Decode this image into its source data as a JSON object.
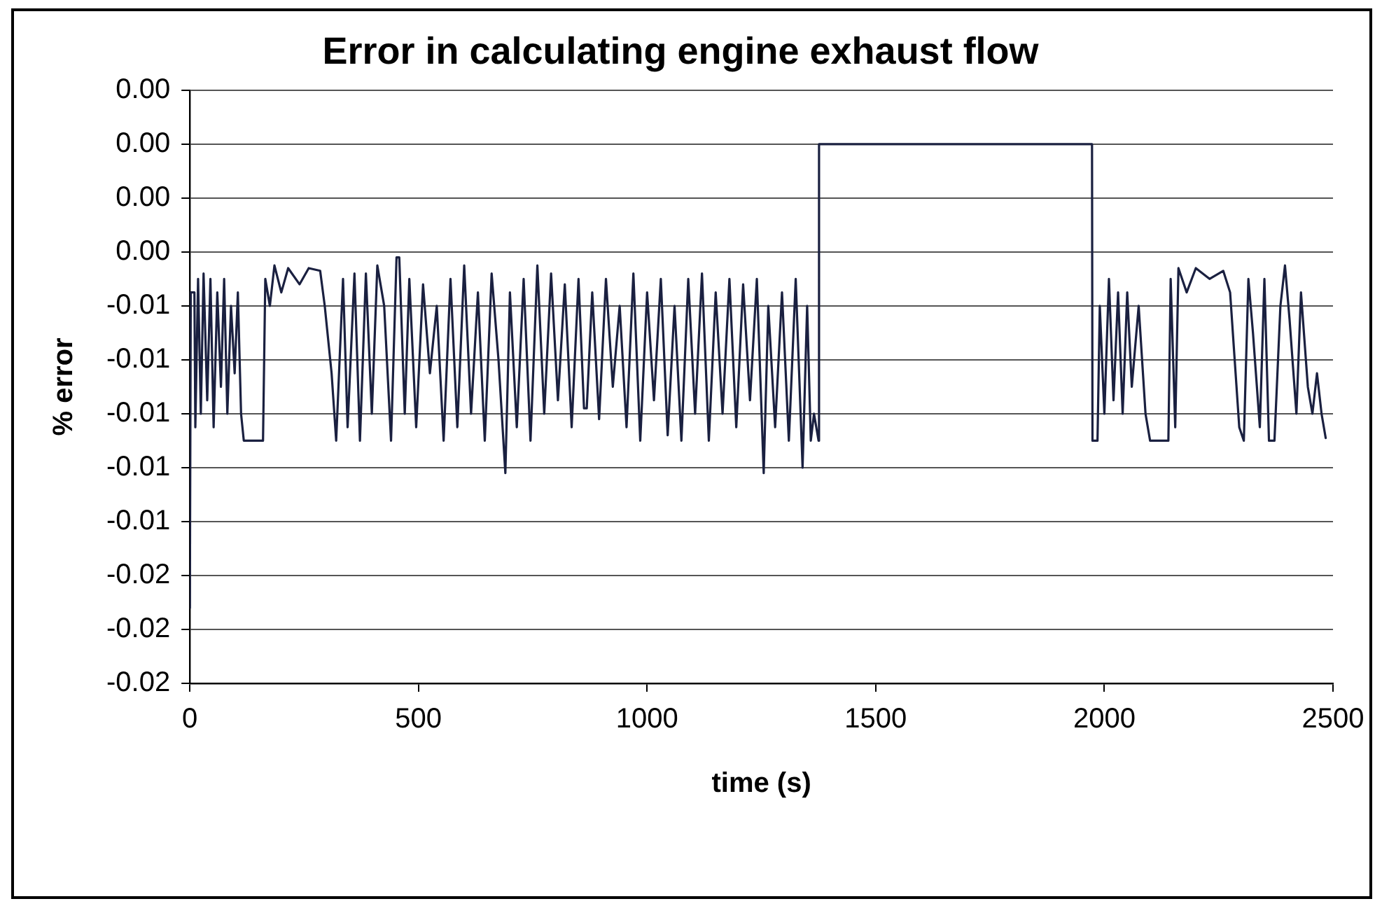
{
  "chart_data": {
    "type": "line",
    "title": "Error in calculating engine exhaust flow",
    "xlabel": "time (s)",
    "ylabel": "% error",
    "xlim": [
      0,
      2500
    ],
    "xticks": [
      0,
      500,
      1000,
      1500,
      2000,
      2500
    ],
    "ylim": [
      -0.02,
      0.002
    ],
    "yticks": [
      {
        "value": 0.002,
        "label": "0.00"
      },
      {
        "value": 0,
        "label": "0.00"
      },
      {
        "value": -0.002,
        "label": "0.00"
      },
      {
        "value": -0.004,
        "label": "0.00"
      },
      {
        "value": -0.006,
        "label": "-0.01"
      },
      {
        "value": -0.008,
        "label": "-0.01"
      },
      {
        "value": -0.01,
        "label": "-0.01"
      },
      {
        "value": -0.012,
        "label": "-0.01"
      },
      {
        "value": -0.014,
        "label": "-0.01"
      },
      {
        "value": -0.016,
        "label": "-0.02"
      },
      {
        "value": -0.018,
        "label": "-0.02"
      },
      {
        "value": -0.02,
        "label": "-0.02"
      }
    ],
    "grid": "y",
    "legend": false,
    "marker": "none",
    "line_style": "solid",
    "series": [
      {
        "color": "#1a2040",
        "x": [
          0,
          2,
          10,
          12,
          18,
          24,
          30,
          38,
          45,
          52,
          60,
          68,
          75,
          82,
          90,
          98,
          105,
          112,
          118,
          160,
          165,
          175,
          185,
          200,
          215,
          240,
          260,
          285,
          295,
          310,
          320,
          335,
          345,
          360,
          372,
          385,
          398,
          410,
          425,
          440,
          452,
          458,
          470,
          480,
          495,
          510,
          525,
          540,
          555,
          570,
          585,
          600,
          615,
          630,
          645,
          660,
          675,
          690,
          700,
          715,
          730,
          745,
          760,
          775,
          790,
          805,
          820,
          835,
          850,
          862,
          868,
          880,
          895,
          910,
          925,
          940,
          955,
          970,
          985,
          1000,
          1015,
          1030,
          1045,
          1060,
          1075,
          1090,
          1105,
          1120,
          1135,
          1150,
          1165,
          1180,
          1195,
          1210,
          1225,
          1240,
          1255,
          1265,
          1280,
          1295,
          1310,
          1325,
          1340,
          1350,
          1358,
          1365,
          1375,
          1376,
          1973,
          1974,
          1985,
          1990,
          2000,
          2010,
          2020,
          2030,
          2040,
          2050,
          2060,
          2075,
          2090,
          2100,
          2140,
          2145,
          2155,
          2162,
          2180,
          2200,
          2230,
          2260,
          2275,
          2285,
          2295,
          2305,
          2315,
          2325,
          2340,
          2350,
          2360,
          2372,
          2385,
          2395,
          2405,
          2420,
          2430,
          2445,
          2455,
          2465,
          2475,
          2484
        ],
        "values": [
          -0.0172,
          -0.0055,
          -0.0055,
          -0.0105,
          -0.005,
          -0.01,
          -0.0048,
          -0.0095,
          -0.005,
          -0.0105,
          -0.0055,
          -0.009,
          -0.005,
          -0.01,
          -0.006,
          -0.0085,
          -0.0055,
          -0.01,
          -0.011,
          -0.011,
          -0.005,
          -0.006,
          -0.0045,
          -0.0055,
          -0.0046,
          -0.0052,
          -0.0046,
          -0.0047,
          -0.006,
          -0.0085,
          -0.011,
          -0.005,
          -0.0105,
          -0.0048,
          -0.011,
          -0.0048,
          -0.01,
          -0.0045,
          -0.006,
          -0.011,
          -0.0042,
          -0.0042,
          -0.01,
          -0.005,
          -0.0105,
          -0.0052,
          -0.0085,
          -0.006,
          -0.011,
          -0.005,
          -0.0105,
          -0.0045,
          -0.01,
          -0.0055,
          -0.011,
          -0.0048,
          -0.008,
          -0.0122,
          -0.0055,
          -0.0105,
          -0.005,
          -0.011,
          -0.0045,
          -0.01,
          -0.0048,
          -0.0095,
          -0.0052,
          -0.0105,
          -0.005,
          -0.0098,
          -0.0098,
          -0.0055,
          -0.0102,
          -0.005,
          -0.009,
          -0.006,
          -0.0105,
          -0.0048,
          -0.011,
          -0.0055,
          -0.0095,
          -0.005,
          -0.0108,
          -0.006,
          -0.011,
          -0.005,
          -0.01,
          -0.0048,
          -0.011,
          -0.0055,
          -0.01,
          -0.005,
          -0.0105,
          -0.0052,
          -0.0095,
          -0.005,
          -0.0122,
          -0.006,
          -0.0105,
          -0.0055,
          -0.011,
          -0.005,
          -0.012,
          -0.006,
          -0.011,
          -0.01,
          -0.011,
          0,
          0,
          -0.011,
          -0.011,
          -0.006,
          -0.01,
          -0.005,
          -0.0095,
          -0.0055,
          -0.01,
          -0.0055,
          -0.009,
          -0.006,
          -0.01,
          -0.011,
          -0.011,
          -0.005,
          -0.0105,
          -0.0046,
          -0.0055,
          -0.0046,
          -0.005,
          -0.0047,
          -0.0055,
          -0.008,
          -0.0105,
          -0.011,
          -0.005,
          -0.007,
          -0.0105,
          -0.005,
          -0.011,
          -0.011,
          -0.006,
          -0.0045,
          -0.0065,
          -0.01,
          -0.0055,
          -0.009,
          -0.01,
          -0.0085,
          -0.01,
          -0.0109
        ]
      }
    ]
  }
}
